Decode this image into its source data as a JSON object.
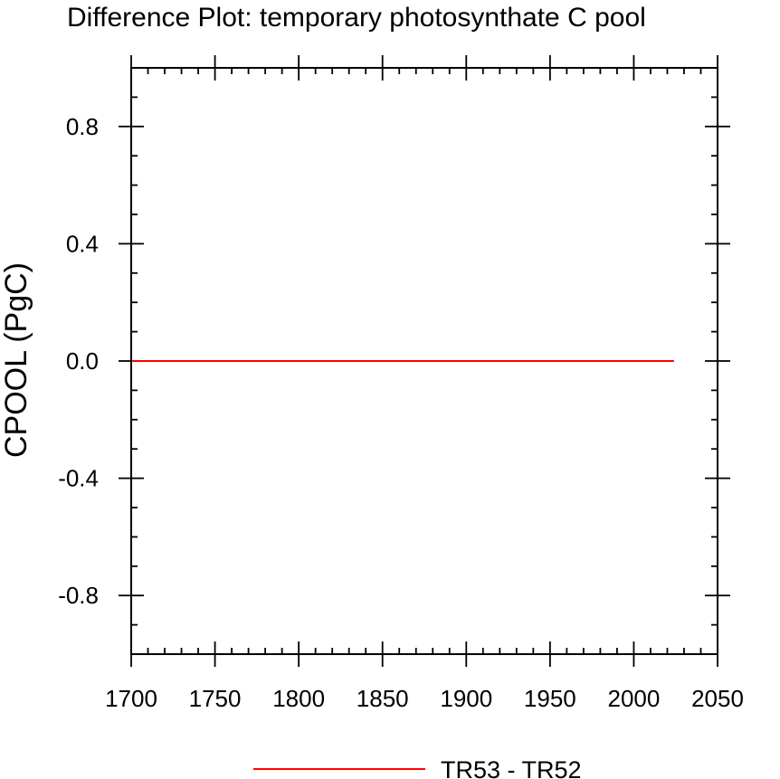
{
  "chart_data": {
    "type": "line",
    "title": "Difference Plot: temporary photosynthate C pool",
    "xlabel": "",
    "ylabel": "CPOOL  (PgC)",
    "xlim": [
      1700,
      2050
    ],
    "ylim": [
      -1.0,
      1.0
    ],
    "x_ticks": [
      1700,
      1750,
      1800,
      1850,
      1900,
      1950,
      2000,
      2050
    ],
    "x_tick_labels": [
      "1700",
      "1750",
      "1800",
      "1850",
      "1900",
      "1950",
      "2000",
      "2050"
    ],
    "y_ticks": [
      -0.8,
      -0.4,
      0.0,
      0.4,
      0.8
    ],
    "y_tick_labels": [
      "-0.8",
      "-0.4",
      "0.0",
      "0.4",
      "0.8"
    ],
    "grid": false,
    "legend_position": "bottom-center",
    "series": [
      {
        "name": "TR53 - TR52",
        "color": "#ff0000",
        "x": [
          1700,
          2024
        ],
        "y": [
          0.0,
          0.0
        ]
      }
    ]
  }
}
